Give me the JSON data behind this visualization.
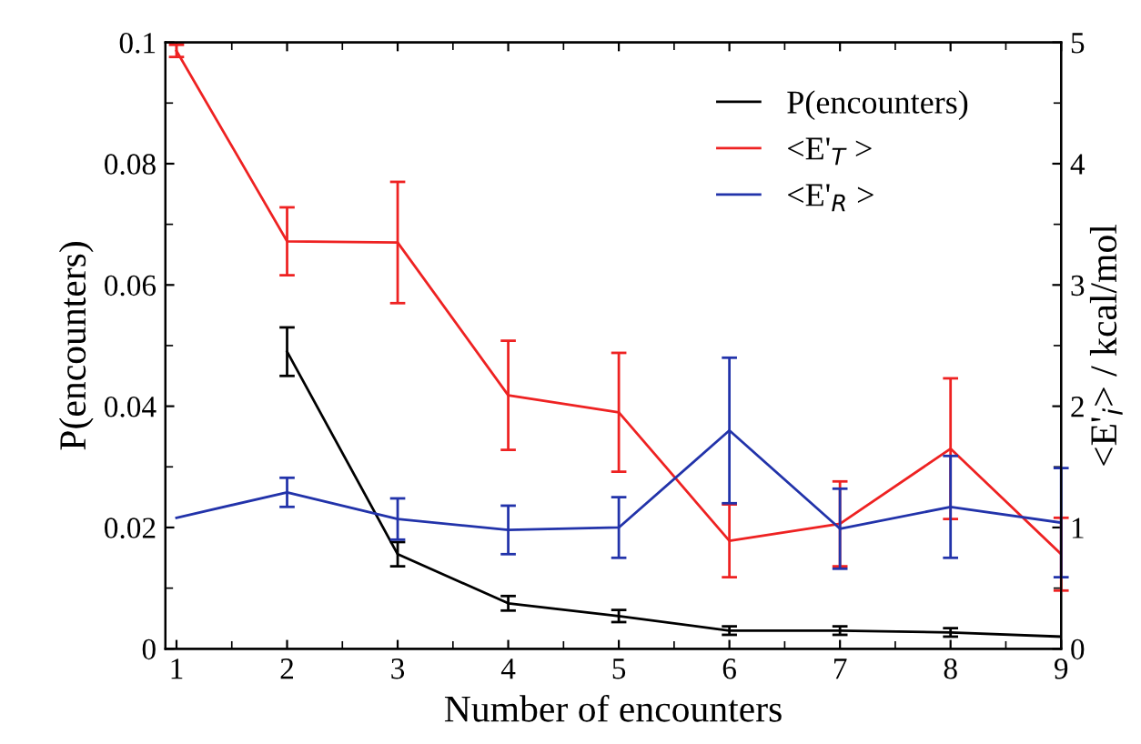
{
  "chart_data": {
    "type": "line",
    "xlabel": "Number of encounters",
    "ylabel": "P(encounters)",
    "y2label": "<E'$_{i}$> / kcal/mol",
    "x": [
      1,
      2,
      3,
      4,
      5,
      6,
      7,
      8,
      9
    ],
    "series": [
      {
        "name": "P(encounters)",
        "color": "#000000",
        "values": [
          null,
          0.049,
          0.0156,
          0.0075,
          0.0054,
          0.003,
          0.003,
          0.0027,
          0.002
        ],
        "errors": [
          null,
          0.004,
          0.002,
          0.0012,
          0.001,
          0.0007,
          0.0007,
          0.0007,
          null
        ]
      },
      {
        "name": "<E'$_{T}$ >",
        "color": "#ee2222",
        "axis": "y2",
        "values": [
          4.93,
          3.36,
          3.35,
          2.09,
          1.95,
          0.89,
          1.03,
          1.65,
          0.78
        ],
        "errors": [
          0.05,
          0.28,
          0.5,
          0.45,
          0.49,
          0.3,
          0.35,
          0.58,
          0.3
        ]
      },
      {
        "name": "<E'$_{R}$ >",
        "color": "#2233aa",
        "axis": "y2",
        "values": [
          1.08,
          1.29,
          1.07,
          0.98,
          1.0,
          1.8,
          0.99,
          1.17,
          1.04
        ],
        "errors": [
          null,
          0.12,
          0.17,
          0.2,
          0.25,
          0.6,
          0.33,
          0.42,
          0.45
        ]
      }
    ],
    "xlim": [
      0.9,
      9
    ],
    "xticks": [
      1,
      2,
      3,
      4,
      5,
      6,
      7,
      8,
      9
    ],
    "ylim": [
      0,
      0.1
    ],
    "yticks": [
      0,
      0.02,
      0.04,
      0.06,
      0.08,
      0.1
    ],
    "y2lim": [
      0,
      5
    ],
    "y2ticks": [
      0,
      1,
      2,
      3,
      4,
      5
    ],
    "legend": "top right",
    "grid": false
  }
}
